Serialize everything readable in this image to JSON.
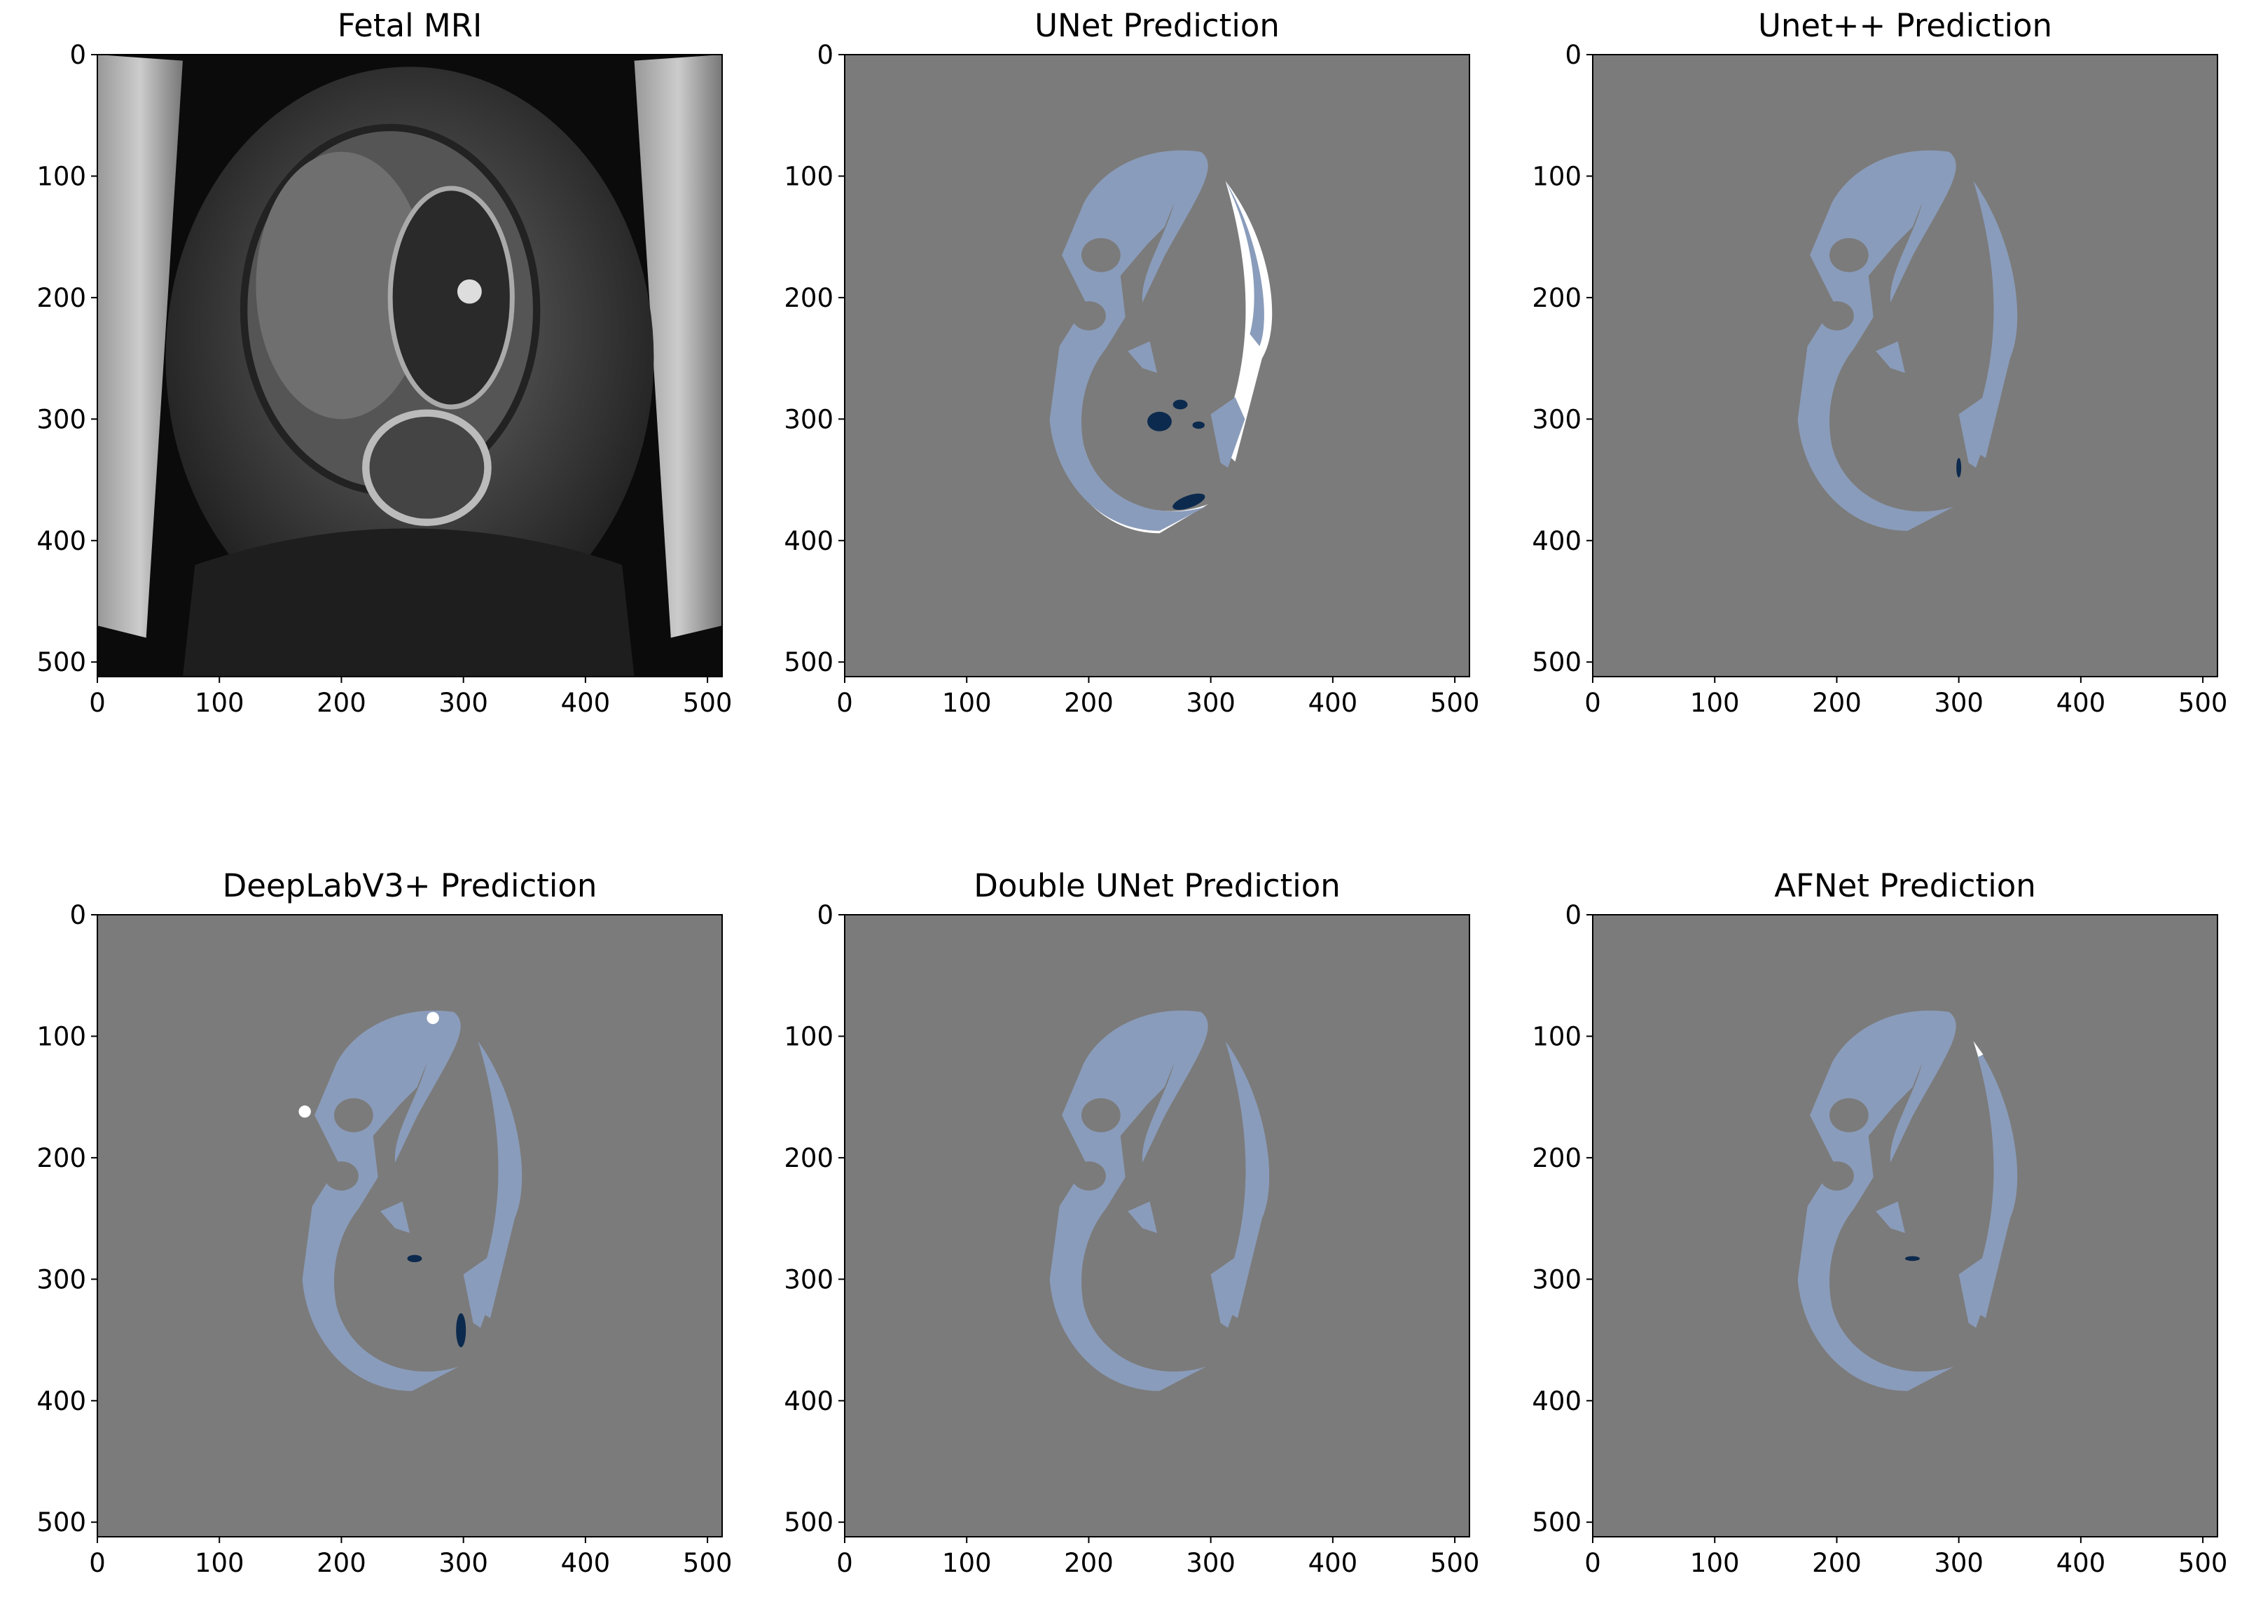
{
  "chart_data": [
    {
      "type": "image",
      "title": "Fetal MRI",
      "xlim": [
        0,
        512
      ],
      "ylim": [
        512,
        0
      ],
      "xticks": [
        0,
        100,
        200,
        300,
        400,
        500
      ],
      "yticks": [
        0,
        100,
        200,
        300,
        400,
        500
      ]
    },
    {
      "type": "image",
      "title": "UNet Prediction",
      "xlim": [
        0,
        512
      ],
      "ylim": [
        512,
        0
      ],
      "xticks": [
        0,
        100,
        200,
        300,
        400,
        500
      ],
      "yticks": [
        0,
        100,
        200,
        300,
        400,
        500
      ]
    },
    {
      "type": "image",
      "title": "Unet++ Prediction",
      "xlim": [
        0,
        512
      ],
      "ylim": [
        512,
        0
      ],
      "xticks": [
        0,
        100,
        200,
        300,
        400,
        500
      ],
      "yticks": [
        0,
        100,
        200,
        300,
        400,
        500
      ]
    },
    {
      "type": "image",
      "title": "DeepLabV3+ Prediction",
      "xlim": [
        0,
        512
      ],
      "ylim": [
        512,
        0
      ],
      "xticks": [
        0,
        100,
        200,
        300,
        400,
        500
      ],
      "yticks": [
        0,
        100,
        200,
        300,
        400,
        500
      ]
    },
    {
      "type": "image",
      "title": "Double UNet Prediction",
      "xlim": [
        0,
        512
      ],
      "ylim": [
        512,
        0
      ],
      "xticks": [
        0,
        100,
        200,
        300,
        400,
        500
      ],
      "yticks": [
        0,
        100,
        200,
        300,
        400,
        500
      ]
    },
    {
      "type": "image",
      "title": "AFNet Prediction",
      "xlim": [
        0,
        512
      ],
      "ylim": [
        512,
        0
      ],
      "xticks": [
        0,
        100,
        200,
        300,
        400,
        500
      ],
      "yticks": [
        0,
        100,
        200,
        300,
        400,
        500
      ]
    }
  ]
}
